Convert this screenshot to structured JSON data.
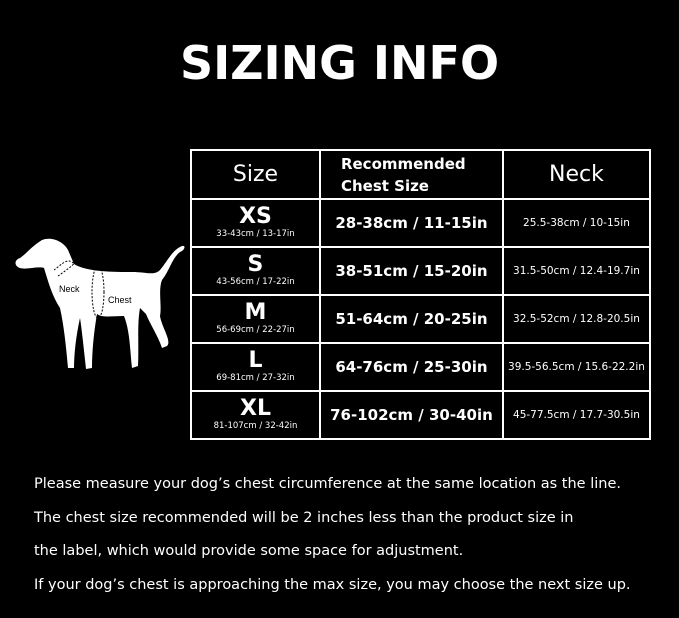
{
  "title": "SIZING INFO",
  "table": {
    "headers": {
      "size": "Size",
      "chest_line1": "Recommended",
      "chest_line2": "Chest Size",
      "neck": "Neck"
    },
    "rows": [
      {
        "size": "XS",
        "product": "33-43cm / 13-17in",
        "chest": "28-38cm / 11-15in",
        "neck": "25.5-38cm / 10-15in"
      },
      {
        "size": "S",
        "product": "43-56cm / 17-22in",
        "chest": "38-51cm / 15-20in",
        "neck": "31.5-50cm / 12.4-19.7in"
      },
      {
        "size": "M",
        "product": "56-69cm / 22-27in",
        "chest": "51-64cm / 20-25in",
        "neck": "32.5-52cm / 12.8-20.5in"
      },
      {
        "size": "L",
        "product": "69-81cm / 27-32in",
        "chest": "64-76cm / 25-30in",
        "neck": "39.5-56.5cm / 15.6-22.2in"
      },
      {
        "size": "XL",
        "product": "81-107cm / 32-42in",
        "chest": "76-102cm / 30-40in",
        "neck": "45-77.5cm / 17.7-30.5in"
      }
    ]
  },
  "dog": {
    "neck_label": "Neck",
    "chest_label": "Chest"
  },
  "notes": [
    "Please measure your dog’s chest circumference at the same location as the line.",
    "The chest size recommended will be 2 inches less than the product size in",
    "the label, which would provide some space for adjustment.",
    "If your dog’s chest is approaching the max size, you may choose the next size up."
  ]
}
